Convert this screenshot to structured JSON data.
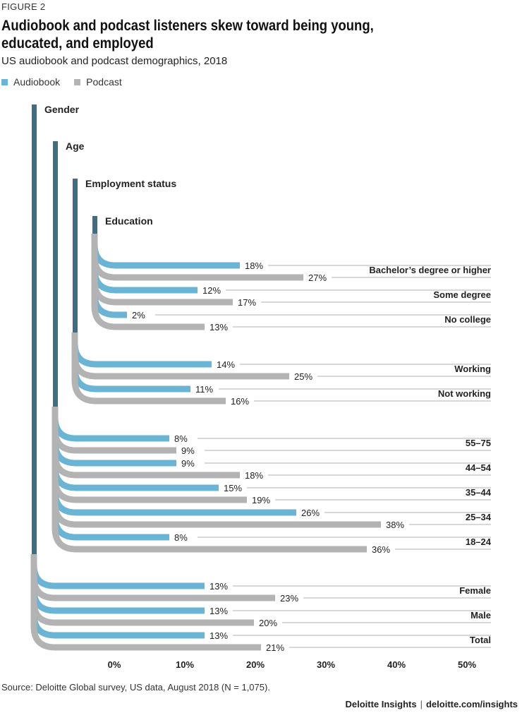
{
  "figure_label": "FIGURE 2",
  "title": "Audiobook and podcast listeners skew toward being young, educated, and employed",
  "subtitle": "US audiobook and podcast demographics, 2018",
  "colors": {
    "audiobook": "#6ab4d6",
    "podcast": "#b3b3b3",
    "stem": "#3f6e82",
    "rule": "#999999"
  },
  "chart_data": {
    "type": "bar",
    "orientation": "horizontal",
    "legend": [
      {
        "name": "Audiobook"
      },
      {
        "name": "Podcast"
      }
    ],
    "xlim": [
      0,
      50
    ],
    "x_ticks": [
      "0%",
      "10%",
      "20%",
      "30%",
      "40%",
      "50%"
    ],
    "groups": [
      {
        "name": "Education",
        "rows": [
          {
            "label": "Bachelor’s degree or higher",
            "audiobook": 18,
            "podcast": 27
          },
          {
            "label": "Some degree",
            "audiobook": 12,
            "podcast": 17
          },
          {
            "label": "No college",
            "audiobook": 2,
            "podcast": 13
          }
        ]
      },
      {
        "name": "Employment status",
        "rows": [
          {
            "label": "Working",
            "audiobook": 14,
            "podcast": 25
          },
          {
            "label": "Not working",
            "audiobook": 11,
            "podcast": 16
          }
        ]
      },
      {
        "name": "Age",
        "rows": [
          {
            "label": "55–75",
            "audiobook": 8,
            "podcast": 9
          },
          {
            "label": "44–54",
            "audiobook": 9,
            "podcast": 18
          },
          {
            "label": "35–44",
            "audiobook": 15,
            "podcast": 19
          },
          {
            "label": "25–34",
            "audiobook": 26,
            "podcast": 38
          },
          {
            "label": "18–24",
            "audiobook": 8,
            "podcast": 36
          }
        ]
      },
      {
        "name": "Gender",
        "rows": [
          {
            "label": "Female",
            "audiobook": 13,
            "podcast": 23
          },
          {
            "label": "Male",
            "audiobook": 13,
            "podcast": 20
          },
          {
            "label": "Total",
            "audiobook": 13,
            "podcast": 21
          }
        ]
      }
    ]
  },
  "source": "Source: Deloitte Global survey, US data, August 2018 (N = 1,075).",
  "footer": {
    "brand": "Deloitte Insights",
    "separator": "|",
    "url": "deloitte.com/insights"
  }
}
